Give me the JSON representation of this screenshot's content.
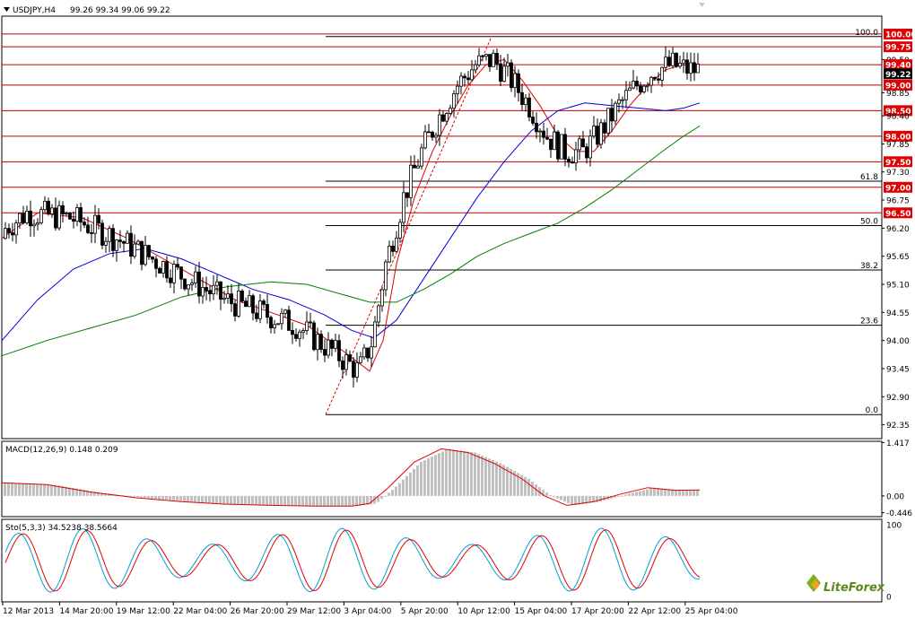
{
  "window": {
    "symbol_header": "USDJPY,H4",
    "ohlc_header": "99.26 99.34 99.06 99.22"
  },
  "colors": {
    "candle": "#000000",
    "ma_fast": "#e00000",
    "ma_mid": "#0000e0",
    "ma_slow": "#008000",
    "level_line": "#c00000",
    "level_box": "#e00000",
    "fib_line": "#000000",
    "macd_hist": "#c0c0c0",
    "macd_signal": "#e00000",
    "sto_main": "#00a0d0",
    "sto_signal": "#e00000",
    "price_box_bg": "#000000"
  },
  "chart_data": [
    {
      "type": "candlestick",
      "title": "USDJPY,H4",
      "ohlc_readout": "99.26 99.34 99.06 99.22",
      "ylim": [
        92.08,
        100.35
      ],
      "y_ticks": [
        "100.00",
        "99.75",
        "99.50",
        "99.40",
        "99.22",
        "99.00",
        "98.85",
        "98.50",
        "98.40",
        "98.00",
        "97.85",
        "97.50",
        "97.30",
        "97.00",
        "96.75",
        "96.50",
        "96.20",
        "95.65",
        "95.10",
        "94.55",
        "94.00",
        "93.45",
        "92.90",
        "92.35"
      ],
      "x_tick_labels": [
        "12 Mar 2013",
        "14 Mar 20:00",
        "19 Mar 12:00",
        "22 Mar 04:00",
        "26 Mar 20:00",
        "29 Mar 12:00",
        "3 Apr 04:00",
        "5 Apr 20:00",
        "10 Apr 12:00",
        "15 Apr 04:00",
        "17 Apr 20:00",
        "22 Apr 12:00",
        "25 Apr 04:00"
      ],
      "current_price": 99.22,
      "horizontal_levels": [
        100.0,
        99.75,
        99.4,
        99.0,
        98.5,
        98.0,
        97.5,
        97.0,
        96.5
      ],
      "level_labels": [
        "100.00",
        "99.75",
        "99.40",
        "99.00",
        "98.50",
        "98.00",
        "97.50",
        "97.00",
        "96.50"
      ],
      "fibonacci": {
        "start": {
          "date": "1 Apr 2013",
          "price": 92.55
        },
        "end": {
          "date": "11 Apr 2013",
          "price": 99.95
        },
        "levels": [
          {
            "label": "100.0",
            "price": 99.95
          },
          {
            "label": "61.8",
            "price": 97.12
          },
          {
            "label": "50.0",
            "price": 96.25
          },
          {
            "label": "38.2",
            "price": 95.38
          },
          {
            "label": "23.6",
            "price": 94.3
          },
          {
            "label": "0.0",
            "price": 92.55
          }
        ]
      },
      "moving_averages": [
        {
          "color": "#e00000",
          "points": [
            [
              0,
              96.0
            ],
            [
              40,
              96.5
            ],
            [
              90,
              96.4
            ],
            [
              140,
              96.0
            ],
            [
              180,
              95.6
            ],
            [
              220,
              95.2
            ],
            [
              260,
              94.8
            ],
            [
              300,
              94.55
            ],
            [
              340,
              94.3
            ],
            [
              380,
              93.8
            ],
            [
              410,
              93.4
            ],
            [
              425,
              94.0
            ],
            [
              440,
              95.5
            ],
            [
              460,
              96.8
            ],
            [
              480,
              97.7
            ],
            [
              500,
              98.4
            ],
            [
              520,
              99.0
            ],
            [
              540,
              99.4
            ],
            [
              560,
              99.5
            ],
            [
              580,
              99.1
            ],
            [
              600,
              98.6
            ],
            [
              620,
              98.0
            ],
            [
              640,
              97.7
            ],
            [
              660,
              97.7
            ],
            [
              680,
              98.1
            ],
            [
              700,
              98.6
            ],
            [
              720,
              99.0
            ],
            [
              740,
              99.3
            ],
            [
              760,
              99.4
            ],
            [
              778,
              99.3
            ]
          ]
        },
        {
          "color": "#0000e0",
          "points": [
            [
              0,
              94.0
            ],
            [
              40,
              94.8
            ],
            [
              80,
              95.4
            ],
            [
              120,
              95.7
            ],
            [
              160,
              95.8
            ],
            [
              200,
              95.6
            ],
            [
              240,
              95.3
            ],
            [
              280,
              95.0
            ],
            [
              320,
              94.8
            ],
            [
              360,
              94.5
            ],
            [
              390,
              94.2
            ],
            [
              415,
              94.05
            ],
            [
              440,
              94.4
            ],
            [
              470,
              95.2
            ],
            [
              500,
              96.0
            ],
            [
              530,
              96.8
            ],
            [
              560,
              97.5
            ],
            [
              590,
              98.1
            ],
            [
              620,
              98.5
            ],
            [
              650,
              98.65
            ],
            [
              680,
              98.6
            ],
            [
              710,
              98.55
            ],
            [
              740,
              98.5
            ],
            [
              760,
              98.55
            ],
            [
              778,
              98.65
            ]
          ]
        },
        {
          "color": "#008000",
          "points": [
            [
              0,
              93.7
            ],
            [
              50,
              94.0
            ],
            [
              100,
              94.25
            ],
            [
              150,
              94.5
            ],
            [
              200,
              94.85
            ],
            [
              250,
              95.05
            ],
            [
              300,
              95.15
            ],
            [
              340,
              95.1
            ],
            [
              380,
              94.9
            ],
            [
              410,
              94.75
            ],
            [
              440,
              94.75
            ],
            [
              470,
              95.0
            ],
            [
              500,
              95.3
            ],
            [
              530,
              95.65
            ],
            [
              560,
              95.9
            ],
            [
              590,
              96.1
            ],
            [
              620,
              96.3
            ],
            [
              650,
              96.6
            ],
            [
              680,
              96.95
            ],
            [
              710,
              97.35
            ],
            [
              740,
              97.75
            ],
            [
              760,
              98.0
            ],
            [
              778,
              98.2
            ]
          ]
        }
      ]
    },
    {
      "type": "histogram",
      "title": "MACD(12,26,9) 0.148 0.209",
      "ylim": [
        -0.55,
        1.45
      ],
      "y_ticks": [
        "1.417",
        "0.00",
        "-0.446"
      ],
      "signal_points": [
        [
          0,
          0.35
        ],
        [
          50,
          0.3
        ],
        [
          100,
          0.1
        ],
        [
          150,
          -0.05
        ],
        [
          200,
          -0.15
        ],
        [
          250,
          -0.22
        ],
        [
          300,
          -0.25
        ],
        [
          350,
          -0.27
        ],
        [
          390,
          -0.27
        ],
        [
          410,
          -0.2
        ],
        [
          430,
          0.2
        ],
        [
          460,
          0.9
        ],
        [
          490,
          1.25
        ],
        [
          520,
          1.15
        ],
        [
          550,
          0.85
        ],
        [
          580,
          0.45
        ],
        [
          605,
          0.0
        ],
        [
          630,
          -0.25
        ],
        [
          660,
          -0.15
        ],
        [
          690,
          0.05
        ],
        [
          720,
          0.22
        ],
        [
          750,
          0.15
        ],
        [
          778,
          0.16
        ]
      ]
    },
    {
      "type": "line",
      "title": "Sto(5,3,3) 34.5238 38.5664",
      "ylim": [
        0,
        100
      ],
      "y_ticks": [
        "100",
        "0"
      ]
    }
  ],
  "watermark": {
    "brand": "LiteForex"
  }
}
